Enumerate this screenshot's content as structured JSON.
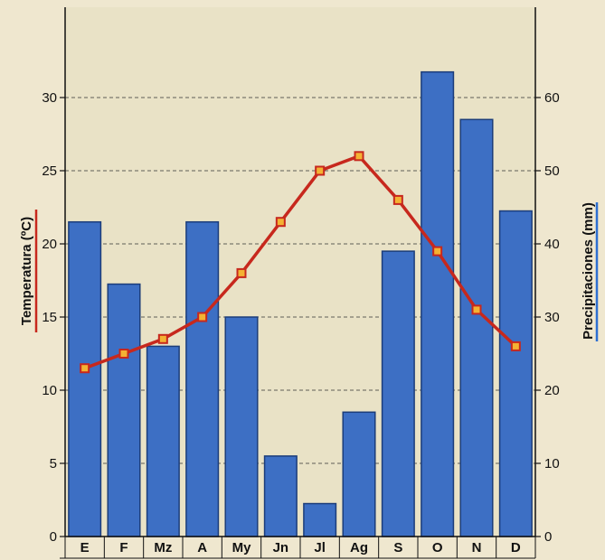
{
  "chart_data": {
    "type": "bar+line",
    "categories": [
      "E",
      "F",
      "Mz",
      "A",
      "My",
      "Jn",
      "Jl",
      "Ag",
      "S",
      "O",
      "N",
      "D"
    ],
    "series": [
      {
        "kind": "bar",
        "axis": "right",
        "values": [
          43,
          34.5,
          26,
          43,
          30,
          11,
          4.5,
          17,
          39,
          63.5,
          57,
          44.5
        ]
      },
      {
        "kind": "line",
        "axis": "left",
        "values": [
          11.5,
          12.5,
          13.5,
          15,
          18,
          21.5,
          25,
          26,
          23,
          19.5,
          15.5,
          13
        ]
      }
    ],
    "ylabel_left": "Temperatura (ºC)",
    "ylabel_right": "Precipitaciones (mm)",
    "ylim_left": [
      0,
      35
    ],
    "ylim_right": [
      0,
      70
    ],
    "yticks_left": [
      "0",
      "5",
      "10",
      "15",
      "20",
      "25",
      "30"
    ],
    "yticks_right": [
      "0",
      "10",
      "20",
      "30",
      "40",
      "50",
      "60"
    ],
    "grid": true,
    "colors": {
      "bar_fill": "#3d6fc4",
      "bar_stroke": "#1c3d7a",
      "line": "#c7281d",
      "marker_fill": "#f4b233",
      "grid": "#333333",
      "plot_bg": "#e9e2c6",
      "left_underline": "#c7281d",
      "right_underline": "#2d6fd1"
    }
  }
}
